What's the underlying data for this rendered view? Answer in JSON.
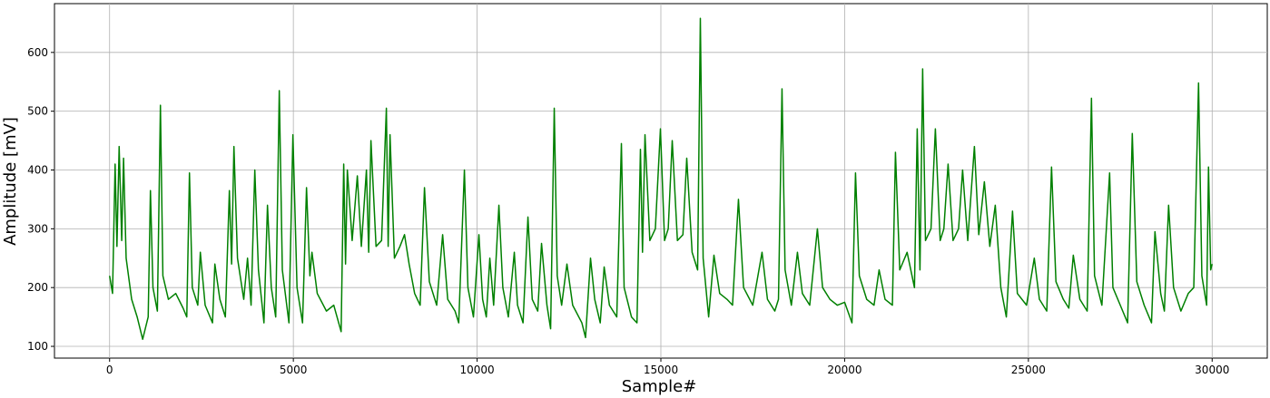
{
  "chart_data": {
    "type": "line",
    "xlabel": "Sample#",
    "ylabel": "Amplitude [mV]",
    "color": "#008000",
    "grid": true,
    "xlim": [
      -1500,
      31500
    ],
    "ylim": [
      80,
      683
    ],
    "xticks": [
      0,
      5000,
      10000,
      15000,
      20000,
      25000,
      30000
    ],
    "yticks": [
      100,
      200,
      300,
      400,
      500,
      600
    ],
    "x": [
      0,
      80,
      150,
      200,
      260,
      330,
      380,
      450,
      600,
      750,
      900,
      1050,
      1111,
      1180,
      1300,
      1383,
      1450,
      1600,
      1800,
      2000,
      2100,
      2173,
      2250,
      2400,
      2469,
      2600,
      2800,
      2864,
      3000,
      3150,
      3259,
      3320,
      3383,
      3480,
      3650,
      3753,
      3850,
      3951,
      4050,
      4200,
      4296,
      4400,
      4520,
      4617,
      4700,
      4880,
      4988,
      5100,
      5250,
      5358,
      5450,
      5506,
      5650,
      5900,
      6100,
      6300,
      6370,
      6420,
      6469,
      6600,
      6741,
      6850,
      6988,
      7050,
      7111,
      7250,
      7400,
      7531,
      7580,
      7630,
      7750,
      7900,
      8025,
      8150,
      8300,
      8450,
      8568,
      8700,
      8900,
      9062,
      9200,
      9400,
      9500,
      9654,
      9750,
      9900,
      10049,
      10150,
      10250,
      10346,
      10450,
      10593,
      10700,
      10850,
      11012,
      11100,
      11250,
      11383,
      11500,
      11650,
      11753,
      11900,
      12000,
      12099,
      12180,
      12300,
      12444,
      12600,
      12850,
      12950,
      13086,
      13200,
      13350,
      13457,
      13600,
      13800,
      13926,
      14000,
      14200,
      14350,
      14444,
      14500,
      14568,
      14700,
      14850,
      14988,
      15100,
      15200,
      15309,
      15450,
      15600,
      15704,
      15850,
      16000,
      16074,
      16150,
      16300,
      16444,
      16600,
      16800,
      16950,
      17111,
      17250,
      17500,
      17753,
      17900,
      18100,
      18200,
      18296,
      18380,
      18550,
      18716,
      18850,
      19050,
      19259,
      19400,
      19600,
      19800,
      20000,
      20200,
      20296,
      20400,
      20600,
      20800,
      20938,
      21100,
      21300,
      21383,
      21500,
      21700,
      21900,
      21975,
      22050,
      22123,
      22200,
      22350,
      22469,
      22600,
      22700,
      22815,
      22950,
      23100,
      23210,
      23350,
      23531,
      23650,
      23802,
      23950,
      24099,
      24250,
      24400,
      24568,
      24700,
      24950,
      25160,
      25300,
      25500,
      25630,
      25750,
      25950,
      26100,
      26222,
      26400,
      26600,
      26716,
      26800,
      27000,
      27210,
      27300,
      27500,
      27700,
      27827,
      27950,
      28150,
      28350,
      28444,
      28600,
      28700,
      28815,
      28950,
      29150,
      29350,
      29500,
      29630,
      29720,
      29850,
      29901,
      29960,
      30000
    ],
    "values": [
      220,
      190,
      410,
      270,
      440,
      280,
      420,
      250,
      180,
      150,
      112,
      150,
      365,
      200,
      160,
      510,
      220,
      180,
      190,
      165,
      150,
      395,
      200,
      170,
      260,
      170,
      140,
      240,
      180,
      150,
      365,
      240,
      440,
      250,
      180,
      250,
      170,
      400,
      230,
      140,
      340,
      200,
      150,
      535,
      230,
      140,
      460,
      200,
      140,
      370,
      220,
      260,
      190,
      160,
      170,
      125,
      410,
      240,
      400,
      280,
      390,
      270,
      400,
      260,
      450,
      270,
      280,
      505,
      270,
      460,
      250,
      270,
      290,
      240,
      190,
      170,
      370,
      210,
      170,
      290,
      180,
      160,
      140,
      400,
      200,
      150,
      290,
      180,
      150,
      250,
      170,
      340,
      200,
      150,
      260,
      170,
      140,
      320,
      180,
      160,
      275,
      170,
      130,
      505,
      220,
      170,
      240,
      170,
      140,
      115,
      250,
      180,
      140,
      235,
      170,
      150,
      445,
      200,
      150,
      140,
      435,
      260,
      460,
      280,
      300,
      470,
      280,
      300,
      450,
      280,
      290,
      420,
      260,
      230,
      658,
      250,
      150,
      255,
      190,
      180,
      170,
      350,
      200,
      170,
      260,
      180,
      160,
      180,
      538,
      230,
      170,
      260,
      190,
      170,
      300,
      200,
      180,
      170,
      175,
      140,
      395,
      220,
      180,
      170,
      230,
      180,
      170,
      430,
      230,
      260,
      200,
      470,
      230,
      572,
      280,
      300,
      470,
      280,
      300,
      410,
      280,
      300,
      400,
      280,
      440,
      290,
      380,
      270,
      340,
      200,
      150,
      330,
      190,
      170,
      250,
      180,
      160,
      405,
      210,
      180,
      165,
      255,
      180,
      160,
      522,
      220,
      170,
      395,
      200,
      170,
      140,
      462,
      210,
      170,
      140,
      295,
      190,
      160,
      340,
      200,
      160,
      190,
      200,
      548,
      220,
      170,
      405,
      230,
      240
    ]
  }
}
